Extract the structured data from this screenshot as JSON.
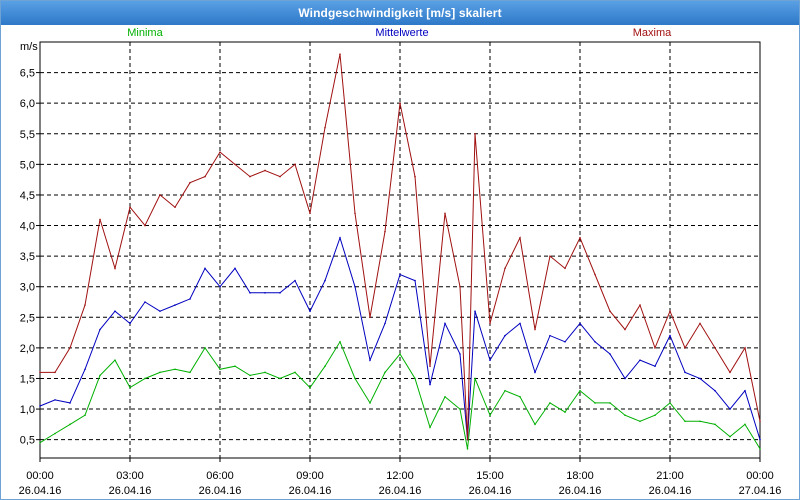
{
  "window": {
    "title": "Windgeschwindigkeit [m/s] skaliert"
  },
  "chart_data": {
    "type": "line",
    "title": "Windgeschwindigkeit [m/s] skaliert",
    "ylabel": "m/s",
    "xlabel": "",
    "ylim": [
      0.2,
      7.0
    ],
    "xlim": [
      0,
      24
    ],
    "grid": true,
    "legend": "top",
    "y_ticks": [
      "6,5",
      "6,0",
      "5,5",
      "5,0",
      "4,5",
      "4,0",
      "3,5",
      "3,0",
      "2,5",
      "2,0",
      "1,5",
      "1,0",
      "0,5"
    ],
    "y_tick_values": [
      6.5,
      6.0,
      5.5,
      5.0,
      4.5,
      4.0,
      3.5,
      3.0,
      2.5,
      2.0,
      1.5,
      1.0,
      0.5
    ],
    "x_ticks": [
      {
        "time": "00:00",
        "date": "26.04.16"
      },
      {
        "time": "03:00",
        "date": "26.04.16"
      },
      {
        "time": "06:00",
        "date": "26.04.16"
      },
      {
        "time": "09:00",
        "date": "26.04.16"
      },
      {
        "time": "12:00",
        "date": "26.04.16"
      },
      {
        "time": "15:00",
        "date": "26.04.16"
      },
      {
        "time": "18:00",
        "date": "26.04.16"
      },
      {
        "time": "21:00",
        "date": "26.04.16"
      },
      {
        "time": "00:00",
        "date": "27.04.16"
      }
    ],
    "series": [
      {
        "name": "Minima",
        "color": "#00b000",
        "x": [
          0,
          0.5,
          1,
          1.5,
          2,
          2.5,
          3,
          3.5,
          4,
          4.5,
          5,
          5.5,
          6,
          6.5,
          7,
          7.5,
          8,
          8.5,
          9,
          9.5,
          10,
          10.5,
          11,
          11.5,
          12,
          12.5,
          13,
          13.5,
          14,
          14.25,
          14.5,
          15,
          15.5,
          16,
          16.5,
          17,
          17.5,
          18,
          18.5,
          19,
          19.5,
          20,
          20.5,
          21,
          21.5,
          22,
          22.5,
          23,
          23.5,
          24
        ],
        "values": [
          0.45,
          0.6,
          0.75,
          0.9,
          1.55,
          1.8,
          1.35,
          1.5,
          1.6,
          1.65,
          1.6,
          2.0,
          1.65,
          1.7,
          1.55,
          1.6,
          1.5,
          1.6,
          1.35,
          1.7,
          2.1,
          1.5,
          1.1,
          1.6,
          1.9,
          1.5,
          0.7,
          1.2,
          1.0,
          0.35,
          1.5,
          0.9,
          1.3,
          1.2,
          0.75,
          1.1,
          0.95,
          1.3,
          1.1,
          1.1,
          0.9,
          0.8,
          0.9,
          1.1,
          0.8,
          0.8,
          0.75,
          0.55,
          0.75,
          0.35
        ]
      },
      {
        "name": "Mittelwerte",
        "color": "#0000c0",
        "x": [
          0,
          0.5,
          1,
          1.5,
          2,
          2.5,
          3,
          3.5,
          4,
          4.5,
          5,
          5.5,
          6,
          6.5,
          7,
          7.5,
          8,
          8.5,
          9,
          9.5,
          10,
          10.5,
          11,
          11.5,
          12,
          12.5,
          13,
          13.5,
          14,
          14.25,
          14.5,
          15,
          15.5,
          16,
          16.5,
          17,
          17.5,
          18,
          18.5,
          19,
          19.5,
          20,
          20.5,
          21,
          21.5,
          22,
          22.5,
          23,
          23.5,
          24
        ],
        "values": [
          1.05,
          1.15,
          1.1,
          1.65,
          2.3,
          2.6,
          2.4,
          2.75,
          2.6,
          2.7,
          2.8,
          3.3,
          3.0,
          3.3,
          2.9,
          2.9,
          2.9,
          3.1,
          2.6,
          3.1,
          3.8,
          3.0,
          1.8,
          2.4,
          3.2,
          3.1,
          1.4,
          2.4,
          1.9,
          0.5,
          2.6,
          1.8,
          2.2,
          2.4,
          1.6,
          2.2,
          2.1,
          2.4,
          2.1,
          1.9,
          1.5,
          1.8,
          1.7,
          2.2,
          1.6,
          1.5,
          1.3,
          1.0,
          1.3,
          0.5
        ]
      },
      {
        "name": "Maxima",
        "color": "#a01010",
        "x": [
          0,
          0.5,
          1,
          1.5,
          2,
          2.5,
          3,
          3.5,
          4,
          4.5,
          5,
          5.5,
          6,
          6.5,
          7,
          7.5,
          8,
          8.5,
          9,
          9.5,
          10,
          10.5,
          11,
          11.5,
          12,
          12.5,
          13,
          13.5,
          14,
          14.25,
          14.5,
          15,
          15.5,
          16,
          16.5,
          17,
          17.5,
          18,
          18.5,
          19,
          19.5,
          20,
          20.5,
          21,
          21.5,
          22,
          22.5,
          23,
          23.5,
          24
        ],
        "values": [
          1.6,
          1.6,
          2.0,
          2.7,
          4.1,
          3.3,
          4.3,
          4.0,
          4.5,
          4.3,
          4.7,
          4.8,
          5.2,
          5.0,
          4.8,
          4.9,
          4.8,
          5.0,
          4.2,
          5.6,
          6.8,
          4.2,
          2.5,
          3.9,
          6.0,
          4.8,
          1.7,
          4.2,
          3.0,
          0.5,
          5.5,
          2.4,
          3.3,
          3.8,
          2.3,
          3.5,
          3.3,
          3.8,
          3.2,
          2.6,
          2.3,
          2.7,
          2.0,
          2.6,
          2.0,
          2.4,
          2.0,
          1.6,
          2.0,
          0.8
        ]
      }
    ]
  }
}
